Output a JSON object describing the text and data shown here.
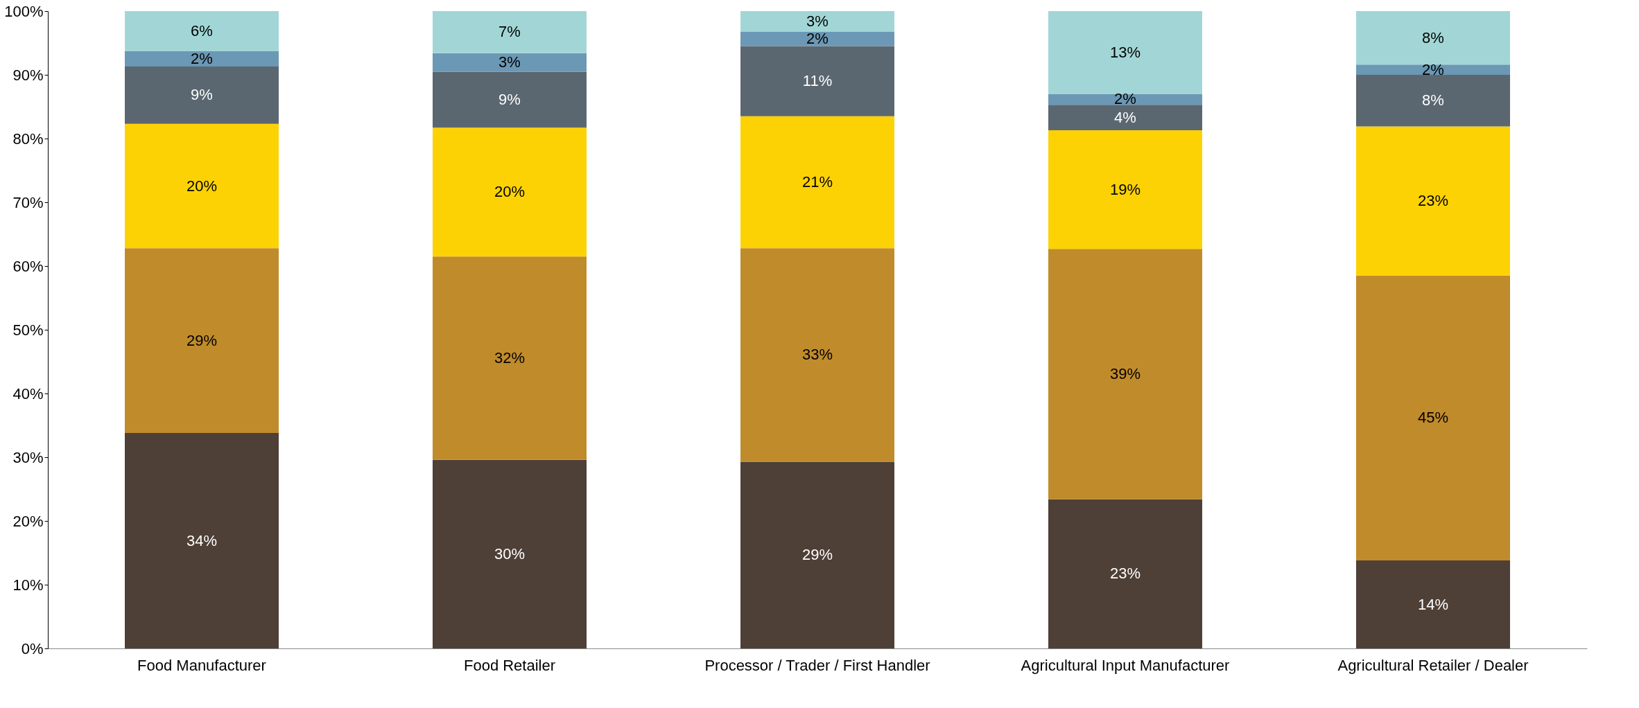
{
  "chart_data": {
    "type": "bar",
    "stacked": true,
    "categories": [
      "Food Manufacturer",
      "Food Retailer",
      "Processor / Trader / First Handler",
      "Agricultural Input Manufacturer",
      "Agricultural Retailer / Dealer"
    ],
    "series": [
      {
        "color": "#4e3f37",
        "values": [
          33.8,
          29.6,
          29.3,
          23.4,
          13.8
        ],
        "value_labels": [
          "34%",
          "30%",
          "29%",
          "23%",
          "14%"
        ]
      },
      {
        "color": "#c08b2b",
        "values": [
          29.0,
          31.9,
          33.5,
          39.3,
          44.7
        ],
        "value_labels": [
          "29%",
          "32%",
          "33%",
          "39%",
          "45%"
        ]
      },
      {
        "color": "#fdd204",
        "values": [
          19.5,
          20.2,
          20.7,
          18.6,
          23.4
        ],
        "value_labels": [
          "20%",
          "20%",
          "21%",
          "19%",
          "23%"
        ]
      },
      {
        "color": "#5b6770",
        "values": [
          9.0,
          8.8,
          11.0,
          4.0,
          8.1
        ],
        "value_labels": [
          "9%",
          "9%",
          "11%",
          "4%",
          "8%"
        ]
      },
      {
        "color": "#6b98b4",
        "values": [
          2.4,
          2.9,
          2.3,
          1.7,
          1.6
        ],
        "value_labels": [
          "2%",
          "3%",
          "2%",
          "2%",
          "2%"
        ]
      },
      {
        "color": "#a2d6d6",
        "values": [
          6.3,
          6.6,
          3.2,
          13.0,
          8.4
        ],
        "value_labels": [
          "6%",
          "7%",
          "3%",
          "13%",
          "8%"
        ]
      }
    ],
    "ylim": [
      0,
      100
    ],
    "yticks": [
      {
        "value": 0,
        "label": "0%"
      },
      {
        "value": 10,
        "label": "10%"
      },
      {
        "value": 20,
        "label": "20%"
      },
      {
        "value": 30,
        "label": "30%"
      },
      {
        "value": 40,
        "label": "40%"
      },
      {
        "value": 50,
        "label": "50%"
      },
      {
        "value": 60,
        "label": "60%"
      },
      {
        "value": 70,
        "label": "70%"
      },
      {
        "value": 80,
        "label": "80%"
      },
      {
        "value": 90,
        "label": "90%"
      },
      {
        "value": 100,
        "label": "100%"
      }
    ],
    "grid": false
  }
}
